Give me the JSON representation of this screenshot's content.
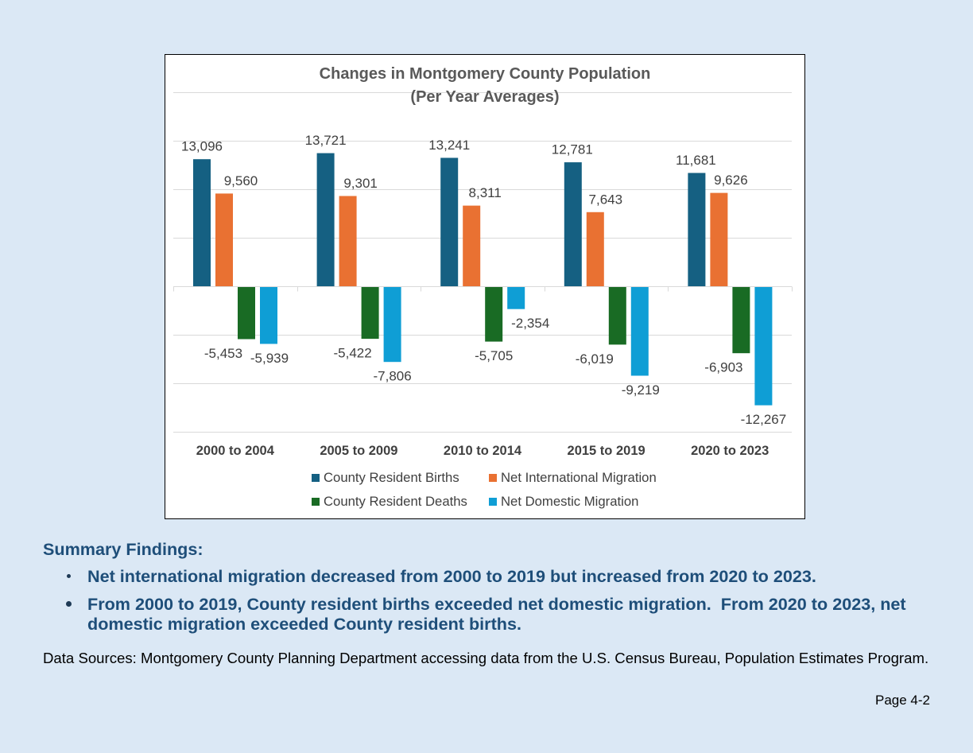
{
  "chart_data": {
    "type": "bar",
    "title": "Changes in Montgomery County Population",
    "subtitle": "(Per Year Averages)",
    "categories": [
      "2000 to 2004",
      "2005 to 2009",
      "2010 to 2014",
      "2015 to 2019",
      "2020 to 2023"
    ],
    "series": [
      {
        "name": "County Resident Births",
        "values": [
          13096,
          13721,
          13241,
          12781,
          11681
        ],
        "color": "#156082"
      },
      {
        "name": "Net International Migration",
        "values": [
          9560,
          9301,
          8311,
          7643,
          9626
        ],
        "color": "#E97132"
      },
      {
        "name": "County Resident Deaths",
        "values": [
          -5453,
          -5422,
          -5705,
          -6019,
          -6903
        ],
        "color": "#196B24"
      },
      {
        "name": "Net Domestic Migration",
        "values": [
          -5939,
          -7806,
          -2354,
          -9219,
          -12267
        ],
        "color": "#0F9ED5"
      }
    ],
    "ylim": [
      -15000,
      20000
    ],
    "y_major_unit": 5000,
    "grid": true,
    "data_labels": true,
    "legend": "bottom"
  },
  "summary": {
    "heading": "Summary Findings:",
    "bullets": [
      "Net international migration decreased from 2000 to 2019 but increased from 2020 to 2023.",
      "From 2000 to 2019, County resident births exceeded net domestic migration.  From 2020 to 2023, net domestic migration exceeded County resident births."
    ]
  },
  "data_sources": "Data Sources: Montgomery County Planning Department accessing data from the U.S. Census Bureau, Population Estimates Program.",
  "page_label": "Page 4-2",
  "colors": {
    "page_background": "#dbe8f5",
    "summary_text": "#1e4e79",
    "chart_background": "#ffffff"
  }
}
